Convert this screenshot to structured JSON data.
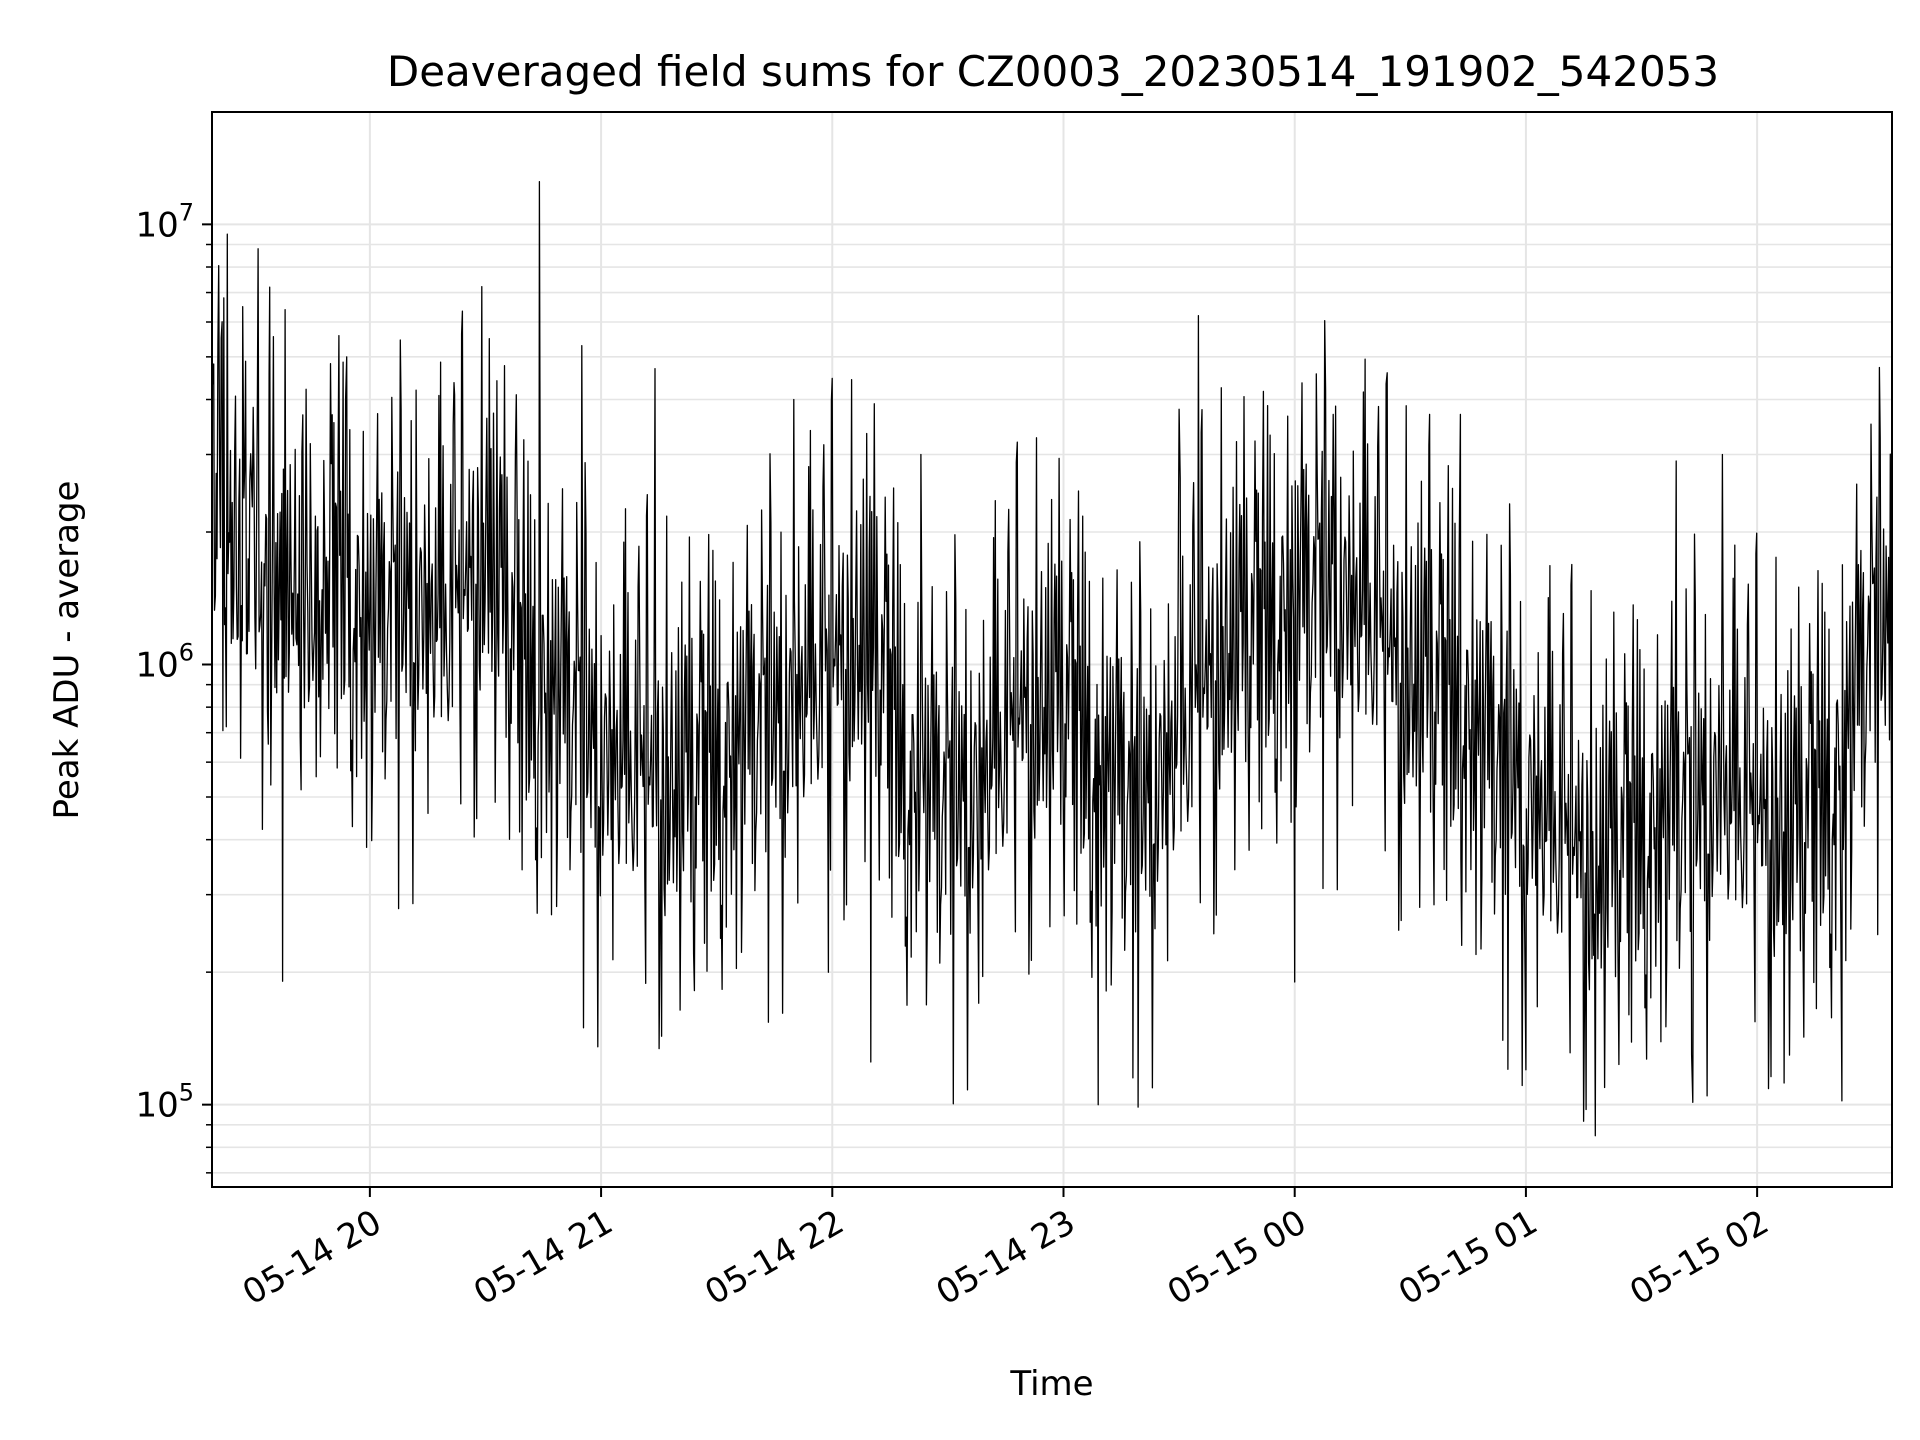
{
  "chart_data": {
    "type": "line",
    "title": "Deaveraged field sums for CZ0003_20230514_191902_542053",
    "xlabel": "Time",
    "ylabel": "Peak ADU - average",
    "yscale": "log",
    "grid": true,
    "line_color": "#000000",
    "grid_color": "#e5e5e5",
    "xlim": [
      "2023-05-14 19:19:02",
      "2023-05-15 02:35:00"
    ],
    "ylim": [
      65000,
      18000000
    ],
    "x_ticks": [
      {
        "t": "2023-05-14 20:00",
        "label": "05-14 20"
      },
      {
        "t": "2023-05-14 21:00",
        "label": "05-14 21"
      },
      {
        "t": "2023-05-14 22:00",
        "label": "05-14 22"
      },
      {
        "t": "2023-05-14 23:00",
        "label": "05-14 23"
      },
      {
        "t": "2023-05-15 00:00",
        "label": "05-15 00"
      },
      {
        "t": "2023-05-15 01:00",
        "label": "05-15 01"
      },
      {
        "t": "2023-05-15 02:00",
        "label": "05-15 02"
      }
    ],
    "y_ticks": [
      {
        "value": 100000,
        "base": "10",
        "exp": "5"
      },
      {
        "value": 1000000,
        "base": "10",
        "exp": "6"
      },
      {
        "value": 10000000,
        "base": "10",
        "exp": "7"
      }
    ],
    "series": [
      {
        "x": [
          "2023-05-14 19:20",
          "2023-05-14 19:30",
          "2023-05-14 19:40",
          "2023-05-14 19:50",
          "2023-05-14 20:00",
          "2023-05-14 20:10",
          "2023-05-14 20:20",
          "2023-05-14 20:30",
          "2023-05-14 20:40",
          "2023-05-14 20:50",
          "2023-05-14 21:00",
          "2023-05-14 21:10",
          "2023-05-14 21:20",
          "2023-05-14 21:30",
          "2023-05-14 21:40",
          "2023-05-14 21:50",
          "2023-05-14 22:00",
          "2023-05-14 22:10",
          "2023-05-14 22:20",
          "2023-05-14 22:30",
          "2023-05-14 22:40",
          "2023-05-14 22:50",
          "2023-05-14 23:00",
          "2023-05-14 23:10",
          "2023-05-14 23:20",
          "2023-05-14 23:30",
          "2023-05-14 23:40",
          "2023-05-14 23:50",
          "2023-05-15 00:00",
          "2023-05-15 00:10",
          "2023-05-15 00:20",
          "2023-05-15 00:30",
          "2023-05-15 00:40",
          "2023-05-15 00:50",
          "2023-05-15 01:00",
          "2023-05-15 01:10",
          "2023-05-15 01:20",
          "2023-05-15 01:30",
          "2023-05-15 01:40",
          "2023-05-15 01:50",
          "2023-05-15 02:00",
          "2023-05-15 02:10",
          "2023-05-15 02:20",
          "2023-05-15 02:30"
        ],
        "y": [
          2500000,
          1400000,
          1200000,
          1500000,
          1000000,
          1200000,
          1100000,
          1600000,
          800000,
          700000,
          550000,
          500000,
          450000,
          500000,
          600000,
          700000,
          900000,
          1000000,
          450000,
          400000,
          500000,
          700000,
          700000,
          500000,
          400000,
          600000,
          900000,
          1000000,
          1200000,
          1300000,
          1100000,
          800000,
          700000,
          550000,
          450000,
          350000,
          300000,
          350000,
          400000,
          450000,
          400000,
          350000,
          450000,
          1000000
        ]
      }
    ],
    "spikes": [
      {
        "t": "2023-05-14 19:23",
        "y": 9500000
      },
      {
        "t": "2023-05-14 19:27",
        "y": 6500000
      },
      {
        "t": "2023-05-14 19:31",
        "y": 8800000
      },
      {
        "t": "2023-05-14 19:34",
        "y": 7200000
      },
      {
        "t": "2023-05-14 19:38",
        "y": 6400000
      },
      {
        "t": "2023-05-14 19:54",
        "y": 5000000
      },
      {
        "t": "2023-05-14 20:12",
        "y": 4200000
      },
      {
        "t": "2023-05-14 20:22",
        "y": 4100000
      },
      {
        "t": "2023-05-14 20:31",
        "y": 5500000
      },
      {
        "t": "2023-05-14 20:38",
        "y": 4100000
      },
      {
        "t": "2023-05-14 20:44",
        "y": 12500000
      },
      {
        "t": "2023-05-14 20:55",
        "y": 5300000
      },
      {
        "t": "2023-05-14 21:14",
        "y": 4700000
      },
      {
        "t": "2023-05-14 21:50",
        "y": 4000000
      },
      {
        "t": "2023-05-14 22:23",
        "y": 3000000
      },
      {
        "t": "2023-05-14 22:48",
        "y": 3200000
      },
      {
        "t": "2023-05-14 23:35",
        "y": 6200000
      },
      {
        "t": "2023-05-14 23:30",
        "y": 3800000
      },
      {
        "t": "2023-05-15 00:10",
        "y": 3700000
      },
      {
        "t": "2023-05-15 00:24",
        "y": 4600000
      },
      {
        "t": "2023-05-15 00:35",
        "y": 3700000
      },
      {
        "t": "2023-05-15 00:43",
        "y": 3700000
      },
      {
        "t": "2023-05-15 01:39",
        "y": 2900000
      },
      {
        "t": "2023-05-15 01:51",
        "y": 3000000
      },
      {
        "t": "2023-05-15 02:22",
        "y": 4400000
      },
      {
        "t": "2023-05-14 21:24",
        "y": 220000
      },
      {
        "t": "2023-05-14 21:59",
        "y": 200000
      },
      {
        "t": "2023-05-14 22:10",
        "y": 125000
      },
      {
        "t": "2023-05-14 22:38",
        "y": 170000
      },
      {
        "t": "2023-05-14 23:09",
        "y": 100000
      },
      {
        "t": "2023-05-14 23:18",
        "y": 115000
      },
      {
        "t": "2023-05-15 00:00",
        "y": 190000
      },
      {
        "t": "2023-05-15 00:54",
        "y": 140000
      },
      {
        "t": "2023-05-15 01:00",
        "y": 120000
      },
      {
        "t": "2023-05-15 01:18",
        "y": 85000
      },
      {
        "t": "2023-05-15 01:43",
        "y": 130000
      },
      {
        "t": "2023-05-15 02:07",
        "y": 112000
      },
      {
        "t": "2023-05-15 02:22",
        "y": 102000
      }
    ]
  }
}
